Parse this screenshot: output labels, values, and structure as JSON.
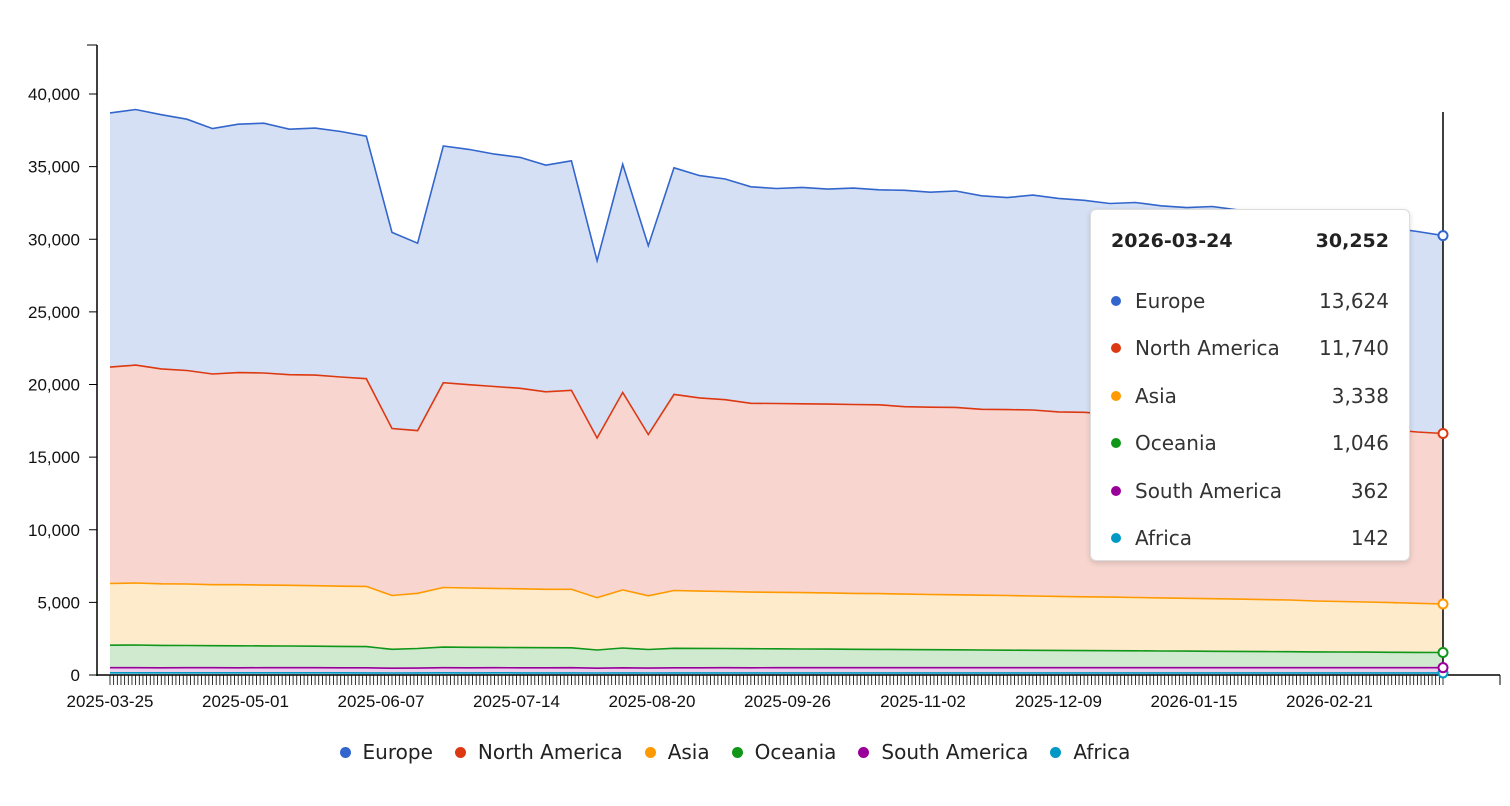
{
  "chart_data": {
    "type": "area",
    "stacked": true,
    "ylim": [
      0,
      40000
    ],
    "yticks": [
      "0",
      "5,000",
      "10,000",
      "15,000",
      "20,000",
      "25,000",
      "30,000",
      "35,000",
      "40,000"
    ],
    "xticks": [
      "2025-03-25",
      "2025-05-01",
      "2025-06-07",
      "2025-07-14",
      "2025-08-20",
      "2025-09-26",
      "2025-11-02",
      "2025-12-09",
      "2026-01-15",
      "2026-02-21"
    ],
    "legend_position": "bottom",
    "x": [
      "2025-03-25",
      "2025-04-01",
      "2025-04-08",
      "2025-04-15",
      "2025-04-22",
      "2025-04-29",
      "2025-05-06",
      "2025-05-13",
      "2025-05-20",
      "2025-05-27",
      "2025-06-03",
      "2025-06-10",
      "2025-06-17",
      "2025-06-24",
      "2025-07-01",
      "2025-07-08",
      "2025-07-15",
      "2025-07-22",
      "2025-07-29",
      "2025-08-05",
      "2025-08-12",
      "2025-08-19",
      "2025-08-26",
      "2025-09-02",
      "2025-09-09",
      "2025-09-16",
      "2025-09-23",
      "2025-09-30",
      "2025-10-07",
      "2025-10-14",
      "2025-10-21",
      "2025-10-28",
      "2025-11-04",
      "2025-11-11",
      "2025-11-18",
      "2025-11-25",
      "2025-12-02",
      "2025-12-09",
      "2025-12-16",
      "2025-12-23",
      "2025-12-30",
      "2026-01-06",
      "2026-01-13",
      "2026-01-20",
      "2026-01-27",
      "2026-02-03",
      "2026-02-10",
      "2026-02-17",
      "2026-02-24",
      "2026-03-03",
      "2026-03-10",
      "2026-03-17",
      "2026-03-24"
    ],
    "series": [
      {
        "name": "Africa",
        "color": "#0099c6",
        "fill": "#cceaf4",
        "values": [
          150,
          151,
          149,
          150,
          150,
          149,
          150,
          151,
          150,
          149,
          148,
          140,
          142,
          149,
          148,
          149,
          148,
          147,
          148,
          140,
          147,
          141,
          147,
          146,
          146,
          145,
          146,
          145,
          145,
          144,
          145,
          144,
          144,
          145,
          144,
          143,
          144,
          143,
          144,
          143,
          143,
          144,
          143,
          142,
          143,
          142,
          143,
          142,
          142,
          143,
          142,
          142,
          142
        ]
      },
      {
        "name": "South America",
        "color": "#990099",
        "fill": "#ebcfeb",
        "values": [
          350,
          355,
          348,
          352,
          350,
          349,
          351,
          353,
          350,
          348,
          350,
          330,
          335,
          352,
          350,
          351,
          349,
          350,
          352,
          330,
          350,
          335,
          351,
          353,
          355,
          354,
          356,
          355,
          357,
          356,
          358,
          357,
          356,
          358,
          359,
          357,
          358,
          360,
          359,
          358,
          360,
          361,
          359,
          360,
          361,
          360,
          362,
          361,
          360,
          361,
          362,
          361,
          362
        ]
      },
      {
        "name": "Oceania",
        "color": "#109618",
        "fill": "#cfeacf",
        "values": [
          1550,
          1560,
          1540,
          1530,
          1520,
          1510,
          1500,
          1490,
          1480,
          1470,
          1460,
          1300,
          1350,
          1420,
          1410,
          1400,
          1390,
          1380,
          1370,
          1250,
          1360,
          1280,
          1340,
          1330,
          1320,
          1310,
          1300,
          1290,
          1280,
          1270,
          1260,
          1250,
          1240,
          1230,
          1220,
          1210,
          1200,
          1190,
          1180,
          1170,
          1160,
          1150,
          1140,
          1130,
          1120,
          1110,
          1100,
          1090,
          1080,
          1070,
          1060,
          1050,
          1046
        ]
      },
      {
        "name": "Asia",
        "color": "#ff9900",
        "fill": "#fdebcc",
        "values": [
          4250,
          4270,
          4240,
          4230,
          4200,
          4210,
          4190,
          4180,
          4170,
          4150,
          4140,
          3700,
          3800,
          4100,
          4080,
          4060,
          4050,
          4020,
          4030,
          3600,
          4000,
          3700,
          3980,
          3950,
          3930,
          3900,
          3890,
          3880,
          3870,
          3850,
          3840,
          3820,
          3800,
          3790,
          3770,
          3760,
          3740,
          3720,
          3700,
          3690,
          3670,
          3650,
          3640,
          3620,
          3600,
          3580,
          3560,
          3500,
          3480,
          3450,
          3420,
          3380,
          3338
        ]
      },
      {
        "name": "North America",
        "color": "#dc3912",
        "fill": "#f8d5cf",
        "values": [
          14900,
          15000,
          14800,
          14700,
          14500,
          14600,
          14600,
          14500,
          14500,
          14400,
          14300,
          11500,
          11200,
          14100,
          14000,
          13900,
          13800,
          13600,
          13700,
          11000,
          13600,
          11100,
          13500,
          13300,
          13200,
          13000,
          13000,
          13000,
          13000,
          13000,
          13000,
          12900,
          12900,
          12900,
          12800,
          12800,
          12800,
          12700,
          12700,
          12600,
          12600,
          12500,
          12500,
          12400,
          12400,
          12300,
          12200,
          12200,
          12100,
          12000,
          11900,
          11800,
          11740
        ]
      },
      {
        "name": "Europe",
        "color": "#3366cc",
        "fill": "#d5e0f5",
        "values": [
          17500,
          17600,
          17500,
          17300,
          16900,
          17100,
          17200,
          16900,
          17000,
          16900,
          16700,
          13500,
          12900,
          16300,
          16200,
          16000,
          15900,
          15600,
          15800,
          12200,
          15700,
          13000,
          15600,
          15300,
          15200,
          14900,
          14800,
          14900,
          14800,
          14900,
          14800,
          14900,
          14800,
          14900,
          14700,
          14600,
          14800,
          14700,
          14600,
          14500,
          14600,
          14500,
          14400,
          14600,
          14400,
          14300,
          14200,
          14200,
          14100,
          14000,
          13900,
          13800,
          13624
        ]
      }
    ]
  },
  "tooltip": {
    "date": "2026-03-24",
    "total": "30,252",
    "rows": [
      {
        "name": "Europe",
        "value": "13,624",
        "color": "#3366cc"
      },
      {
        "name": "North America",
        "value": "11,740",
        "color": "#dc3912"
      },
      {
        "name": "Asia",
        "value": "3,338",
        "color": "#ff9900"
      },
      {
        "name": "Oceania",
        "value": "1,046",
        "color": "#109618"
      },
      {
        "name": "South America",
        "value": "362",
        "color": "#990099"
      },
      {
        "name": "Africa",
        "value": "142",
        "color": "#0099c6"
      }
    ]
  },
  "legend": [
    {
      "name": "Europe",
      "color": "#3366cc"
    },
    {
      "name": "North America",
      "color": "#dc3912"
    },
    {
      "name": "Asia",
      "color": "#ff9900"
    },
    {
      "name": "Oceania",
      "color": "#109618"
    },
    {
      "name": "South America",
      "color": "#990099"
    },
    {
      "name": "Africa",
      "color": "#0099c6"
    }
  ]
}
